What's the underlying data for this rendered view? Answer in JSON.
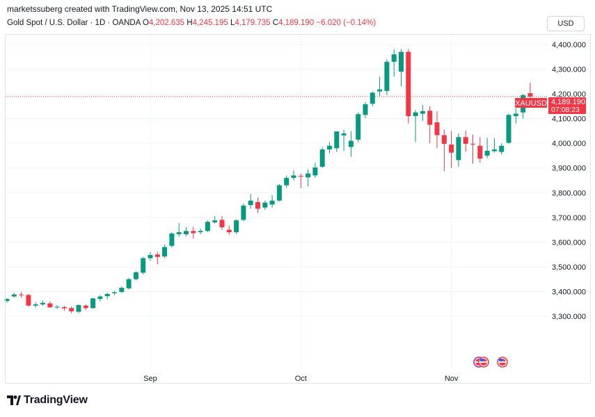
{
  "header": {
    "credit": "marketssuberg created with TradingView.com, Nov 13, 2025 14:51 UTC",
    "symbol": "Gold Spot / U.S. Dollar · 1D · OANDA",
    "o_label": "O",
    "o_value": "4,202.635",
    "h_label": "H",
    "h_value": "4,245.195",
    "l_label": "L",
    "l_value": "4,179.735",
    "c_label": "C",
    "c_value": "4,189.190",
    "change": "−6.020 (−0.14%)",
    "currency": "USD"
  },
  "price_tag": {
    "symbol": "XAUUSD",
    "price": "4,189.190",
    "countdown": "07:08:23"
  },
  "logo": {
    "text": "TradingView"
  },
  "colors": {
    "up": "#089981",
    "down": "#f23645",
    "grid": "#f0f3fa",
    "text": "#131722"
  },
  "chart_data": {
    "type": "candlestick",
    "ylim": [
      3200,
      4450
    ],
    "y_ticks": [
      {
        "value": 3300,
        "label": "3,300.000"
      },
      {
        "value": 3400,
        "label": "3,400.000"
      },
      {
        "value": 3500,
        "label": "3,500.000"
      },
      {
        "value": 3600,
        "label": "3,600.000"
      },
      {
        "value": 3700,
        "label": "3,700.000"
      },
      {
        "value": 3800,
        "label": "3,800.000"
      },
      {
        "value": 3900,
        "label": "3,900.000"
      },
      {
        "value": 4000,
        "label": "4,000.000"
      },
      {
        "value": 4100,
        "label": "4,100.000"
      },
      {
        "value": 4200,
        "label": "4,200.000"
      },
      {
        "value": 4300,
        "label": "4,300.000"
      },
      {
        "value": 4400,
        "label": "4,400.000"
      }
    ],
    "x_ticks": [
      {
        "label": "Sep",
        "index": 20
      },
      {
        "label": "Oct",
        "index": 41
      },
      {
        "label": "Nov",
        "index": 62
      }
    ],
    "last_price": 4189.19,
    "candles": [
      {
        "o": 3362,
        "h": 3372,
        "l": 3355,
        "c": 3370
      },
      {
        "o": 3380,
        "h": 3395,
        "l": 3375,
        "c": 3388
      },
      {
        "o": 3388,
        "h": 3398,
        "l": 3375,
        "c": 3385
      },
      {
        "o": 3386,
        "h": 3390,
        "l": 3338,
        "c": 3343
      },
      {
        "o": 3343,
        "h": 3356,
        "l": 3335,
        "c": 3348
      },
      {
        "o": 3348,
        "h": 3362,
        "l": 3343,
        "c": 3354
      },
      {
        "o": 3352,
        "h": 3360,
        "l": 3333,
        "c": 3336
      },
      {
        "o": 3335,
        "h": 3345,
        "l": 3330,
        "c": 3338
      },
      {
        "o": 3337,
        "h": 3342,
        "l": 3322,
        "c": 3332
      },
      {
        "o": 3333,
        "h": 3340,
        "l": 3312,
        "c": 3320
      },
      {
        "o": 3318,
        "h": 3348,
        "l": 3313,
        "c": 3345
      },
      {
        "o": 3343,
        "h": 3348,
        "l": 3325,
        "c": 3333
      },
      {
        "o": 3333,
        "h": 3375,
        "l": 3330,
        "c": 3372
      },
      {
        "o": 3370,
        "h": 3385,
        "l": 3360,
        "c": 3380
      },
      {
        "o": 3381,
        "h": 3395,
        "l": 3368,
        "c": 3390
      },
      {
        "o": 3393,
        "h": 3402,
        "l": 3385,
        "c": 3397
      },
      {
        "o": 3398,
        "h": 3420,
        "l": 3395,
        "c": 3415
      },
      {
        "o": 3413,
        "h": 3455,
        "l": 3408,
        "c": 3450
      },
      {
        "o": 3450,
        "h": 3482,
        "l": 3445,
        "c": 3478
      },
      {
        "o": 3476,
        "h": 3540,
        "l": 3470,
        "c": 3535
      },
      {
        "o": 3535,
        "h": 3560,
        "l": 3525,
        "c": 3548
      },
      {
        "o": 3550,
        "h": 3560,
        "l": 3510,
        "c": 3540
      },
      {
        "o": 3542,
        "h": 3590,
        "l": 3535,
        "c": 3580
      },
      {
        "o": 3585,
        "h": 3640,
        "l": 3578,
        "c": 3635
      },
      {
        "o": 3632,
        "h": 3677,
        "l": 3622,
        "c": 3640
      },
      {
        "o": 3632,
        "h": 3660,
        "l": 3624,
        "c": 3645
      },
      {
        "o": 3645,
        "h": 3662,
        "l": 3615,
        "c": 3636
      },
      {
        "o": 3640,
        "h": 3655,
        "l": 3632,
        "c": 3645
      },
      {
        "o": 3645,
        "h": 3688,
        "l": 3640,
        "c": 3682
      },
      {
        "o": 3680,
        "h": 3705,
        "l": 3675,
        "c": 3688
      },
      {
        "o": 3690,
        "h": 3705,
        "l": 3650,
        "c": 3660
      },
      {
        "o": 3650,
        "h": 3666,
        "l": 3630,
        "c": 3640
      },
      {
        "o": 3640,
        "h": 3692,
        "l": 3633,
        "c": 3688
      },
      {
        "o": 3690,
        "h": 3755,
        "l": 3685,
        "c": 3748
      },
      {
        "o": 3750,
        "h": 3795,
        "l": 3735,
        "c": 3768
      },
      {
        "o": 3762,
        "h": 3780,
        "l": 3718,
        "c": 3735
      },
      {
        "o": 3740,
        "h": 3768,
        "l": 3730,
        "c": 3760
      },
      {
        "o": 3752,
        "h": 3790,
        "l": 3740,
        "c": 3768
      },
      {
        "o": 3768,
        "h": 3835,
        "l": 3765,
        "c": 3830
      },
      {
        "o": 3830,
        "h": 3870,
        "l": 3820,
        "c": 3860
      },
      {
        "o": 3860,
        "h": 3890,
        "l": 3850,
        "c": 3870
      },
      {
        "o": 3868,
        "h": 3878,
        "l": 3818,
        "c": 3865
      },
      {
        "o": 3862,
        "h": 3895,
        "l": 3825,
        "c": 3878
      },
      {
        "o": 3870,
        "h": 3920,
        "l": 3860,
        "c": 3902
      },
      {
        "o": 3905,
        "h": 3985,
        "l": 3900,
        "c": 3975
      },
      {
        "o": 3975,
        "h": 4005,
        "l": 3960,
        "c": 3990
      },
      {
        "o": 3980,
        "h": 4048,
        "l": 3965,
        "c": 4048
      },
      {
        "o": 4032,
        "h": 4055,
        "l": 3970,
        "c": 4040
      },
      {
        "o": 3985,
        "h": 4050,
        "l": 3945,
        "c": 4010
      },
      {
        "o": 4015,
        "h": 4125,
        "l": 4005,
        "c": 4118
      },
      {
        "o": 4115,
        "h": 4168,
        "l": 4102,
        "c": 4158
      },
      {
        "o": 4160,
        "h": 4210,
        "l": 4150,
        "c": 4205
      },
      {
        "o": 4210,
        "h": 4270,
        "l": 4190,
        "c": 4218
      },
      {
        "o": 4212,
        "h": 4340,
        "l": 4195,
        "c": 4330
      },
      {
        "o": 4330,
        "h": 4380,
        "l": 4270,
        "c": 4360
      },
      {
        "o": 4290,
        "h": 4382,
        "l": 4230,
        "c": 4370
      },
      {
        "o": 4370,
        "h": 4382,
        "l": 4080,
        "c": 4110
      },
      {
        "o": 4110,
        "h": 4135,
        "l": 4005,
        "c": 4125
      },
      {
        "o": 4120,
        "h": 4155,
        "l": 4090,
        "c": 4130
      },
      {
        "o": 4132,
        "h": 4150,
        "l": 4000,
        "c": 4075
      },
      {
        "o": 4085,
        "h": 4130,
        "l": 3980,
        "c": 4033
      },
      {
        "o": 4033,
        "h": 4056,
        "l": 3888,
        "c": 3998
      },
      {
        "o": 3995,
        "h": 4050,
        "l": 3900,
        "c": 3962
      },
      {
        "o": 3932,
        "h": 4040,
        "l": 3905,
        "c": 4025
      },
      {
        "o": 4025,
        "h": 4052,
        "l": 3965,
        "c": 3998
      },
      {
        "o": 3998,
        "h": 4035,
        "l": 3918,
        "c": 3995
      },
      {
        "o": 3990,
        "h": 4025,
        "l": 3922,
        "c": 3938
      },
      {
        "o": 3950,
        "h": 4022,
        "l": 3940,
        "c": 3970
      },
      {
        "o": 3968,
        "h": 4020,
        "l": 3962,
        "c": 3975
      },
      {
        "o": 3965,
        "h": 4000,
        "l": 3955,
        "c": 3990
      },
      {
        "o": 4002,
        "h": 4120,
        "l": 3998,
        "c": 4115
      },
      {
        "o": 4110,
        "h": 4142,
        "l": 4080,
        "c": 4120
      },
      {
        "o": 4125,
        "h": 4200,
        "l": 4100,
        "c": 4195
      },
      {
        "o": 4202.635,
        "h": 4245.195,
        "l": 4179.735,
        "c": 4189.19
      }
    ]
  }
}
